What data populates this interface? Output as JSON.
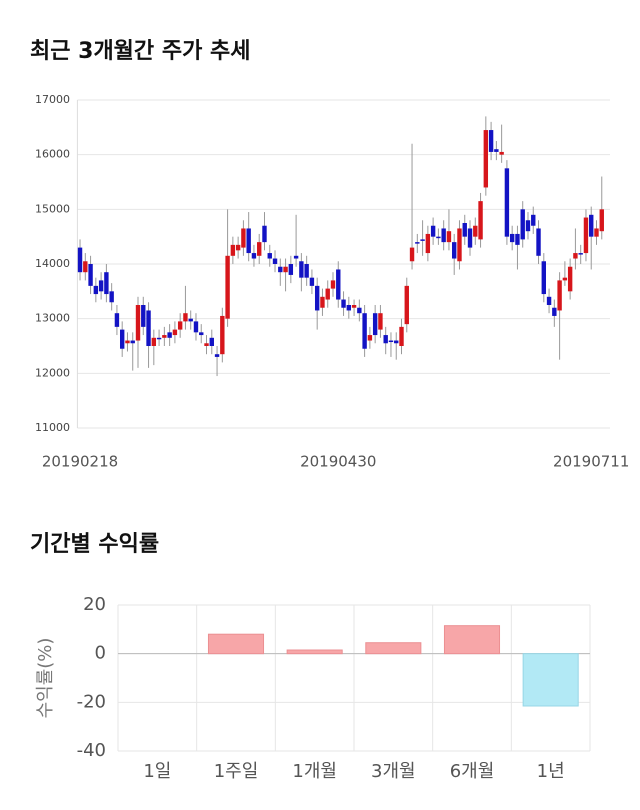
{
  "chart_data": [
    {
      "type": "candlestick",
      "title": "최근 3개월간 주가 추세",
      "categories": [
        "20190218",
        null,
        null,
        null,
        null,
        null,
        null,
        null,
        null,
        null,
        null,
        null,
        null,
        null,
        null,
        null,
        null,
        null,
        null,
        null,
        null,
        null,
        null,
        null,
        null,
        null,
        null,
        null,
        null,
        null,
        null,
        null,
        null,
        null,
        null,
        null,
        null,
        null,
        null,
        null,
        null,
        null,
        null,
        null,
        null,
        null,
        null,
        null,
        null,
        "20190430",
        null,
        null,
        null,
        null,
        null,
        null,
        null,
        null,
        null,
        null,
        null,
        null,
        null,
        null,
        null,
        null,
        null,
        null,
        null,
        null,
        null,
        null,
        null,
        null,
        null,
        null,
        null,
        null,
        null,
        null,
        null,
        null,
        null,
        null,
        null,
        null,
        null,
        null,
        null,
        null,
        null,
        null,
        null,
        null,
        null,
        null,
        null,
        "20190711",
        null,
        null
      ],
      "open": [
        14300,
        13850,
        14000,
        13600,
        13700,
        13850,
        13500,
        13100,
        12800,
        12550,
        12600,
        12600,
        13250,
        13150,
        12500,
        12650,
        12650,
        12750,
        12700,
        12800,
        12950,
        13000,
        12950,
        12750,
        12500,
        12650,
        12350,
        12350,
        13000,
        14150,
        14250,
        14300,
        14650,
        14200,
        14150,
        14700,
        14200,
        14100,
        13950,
        13850,
        14000,
        14150,
        14050,
        14000,
        13750,
        13600,
        13200,
        13350,
        13550,
        13900,
        13350,
        13250,
        13200,
        13200,
        13100,
        12600,
        13100,
        12800,
        12700,
        12600,
        12600,
        12500,
        12900,
        14050,
        14400,
        14450,
        14200,
        14700,
        14500,
        14650,
        14400,
        14400,
        14050,
        14750,
        14650,
        14500,
        14450,
        15400,
        16450,
        16100,
        16000,
        15750,
        14550,
        14550,
        15000,
        14800,
        14900,
        14650,
        14050,
        13400,
        13200,
        13150,
        13700,
        13500,
        14100,
        14200,
        14200,
        14900,
        14500,
        14600
      ],
      "high": [
        14450,
        14200,
        14150,
        13750,
        13850,
        14000,
        13650,
        13250,
        12950,
        12750,
        12750,
        13400,
        13400,
        13300,
        12800,
        12800,
        12850,
        12900,
        12950,
        13100,
        13600,
        13150,
        13100,
        12900,
        12700,
        12800,
        12500,
        13200,
        15000,
        14500,
        14500,
        14800,
        14950,
        14350,
        14550,
        14950,
        14350,
        14250,
        14100,
        14100,
        14150,
        14900,
        14200,
        14150,
        13900,
        13750,
        13550,
        13700,
        13850,
        14050,
        13500,
        13400,
        13350,
        13350,
        13250,
        12850,
        13250,
        13250,
        12850,
        12750,
        12750,
        13000,
        13750,
        16200,
        14550,
        14800,
        14700,
        14850,
        14650,
        14800,
        15000,
        14550,
        14800,
        14900,
        14800,
        14850,
        15300,
        16700,
        16600,
        16250,
        16550,
        15900,
        14700,
        14700,
        15150,
        14950,
        15050,
        14800,
        14200,
        13550,
        13350,
        13850,
        14050,
        14100,
        14650,
        14350,
        15000,
        15050,
        14800,
        15600
      ],
      "low": [
        13700,
        13700,
        13450,
        13300,
        13350,
        13300,
        13150,
        12700,
        12300,
        12400,
        12050,
        12100,
        12700,
        12100,
        12150,
        12500,
        12500,
        12500,
        12550,
        12650,
        12800,
        12800,
        12600,
        12550,
        12350,
        12350,
        11950,
        12200,
        12850,
        14000,
        14100,
        14150,
        14050,
        13950,
        14000,
        14250,
        13950,
        13850,
        13600,
        13500,
        13650,
        13950,
        13500,
        13600,
        13450,
        12800,
        13050,
        13200,
        13400,
        13200,
        13050,
        13000,
        13050,
        12950,
        12300,
        12450,
        12550,
        12650,
        12350,
        12300,
        12250,
        12350,
        12750,
        13900,
        14200,
        14150,
        14050,
        14350,
        14350,
        14250,
        14250,
        13800,
        13900,
        14350,
        14150,
        14350,
        14300,
        15250,
        15900,
        15900,
        15850,
        14350,
        14250,
        13900,
        14300,
        14450,
        14550,
        14000,
        13300,
        13100,
        12850,
        12250,
        13600,
        13350,
        13900,
        14000,
        14050,
        13900,
        14350,
        14450
      ],
      "close": [
        13850,
        14050,
        13600,
        13450,
        13500,
        13450,
        13300,
        12850,
        12450,
        12600,
        12550,
        13250,
        12850,
        12500,
        12650,
        12650,
        12700,
        12650,
        12800,
        12950,
        13100,
        12950,
        12750,
        12700,
        12550,
        12500,
        12300,
        13050,
        14150,
        14350,
        14350,
        14650,
        14200,
        14100,
        14400,
        14400,
        14100,
        14000,
        13850,
        13950,
        13800,
        14100,
        13750,
        13750,
        13600,
        13150,
        13400,
        13550,
        13700,
        13350,
        13200,
        13150,
        13250,
        13100,
        12450,
        12700,
        12700,
        13100,
        12550,
        12600,
        12550,
        12850,
        13600,
        14300,
        14400,
        14450,
        14550,
        14500,
        14500,
        14400,
        14600,
        14100,
        14650,
        14500,
        14300,
        14700,
        15150,
        16450,
        16050,
        16050,
        16050,
        14500,
        14400,
        14350,
        14450,
        14600,
        14700,
        14150,
        13450,
        13250,
        13050,
        13700,
        13750,
        13950,
        14200,
        14200,
        14850,
        14500,
        14650,
        15000
      ],
      "up_color": "#d7161b",
      "down_color": "#1313c4",
      "ylim": [
        11000,
        17000
      ],
      "yticks": [
        11000,
        12000,
        13000,
        14000,
        15000,
        16000,
        17000
      ],
      "grid": true
    },
    {
      "type": "bar",
      "title": "기간별 수익률",
      "y_label": "수익률(%)",
      "categories": [
        "1일",
        "1주일",
        "1개월",
        "3개월",
        "6개월",
        "1년"
      ],
      "values": [
        0,
        8,
        1.5,
        4.5,
        11.5,
        -21.5
      ],
      "positive_color": "#f7a6a8",
      "negative_color": "#b2e9f5",
      "ylim": [
        -40,
        20
      ],
      "yticks": [
        -40,
        -20,
        0,
        20
      ],
      "grid": true
    }
  ]
}
